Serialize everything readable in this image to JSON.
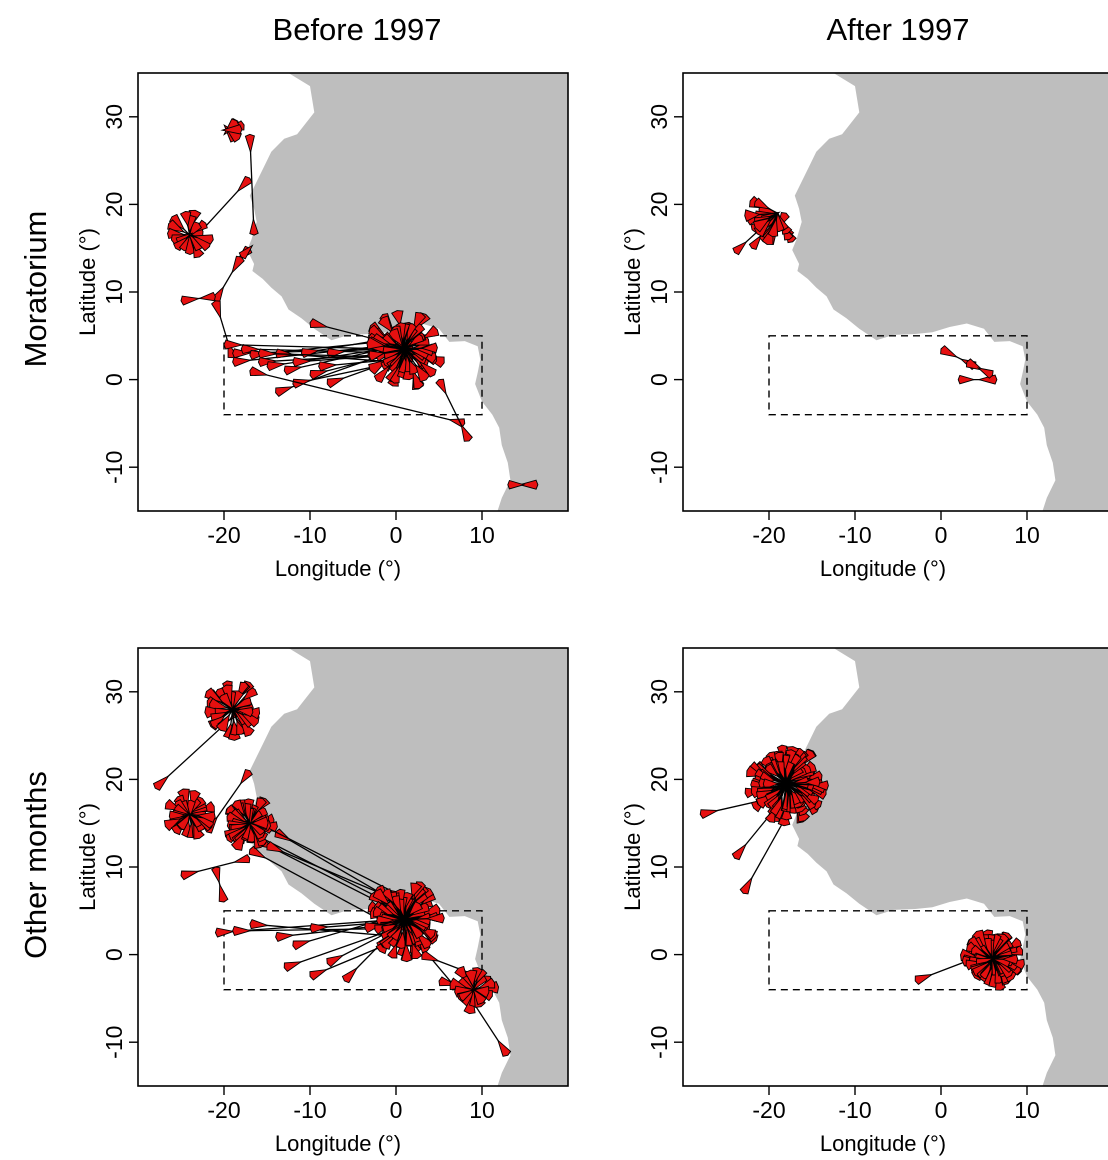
{
  "colors": {
    "land": "#bebebe",
    "arrow_fill": "#e61010",
    "arrow_edge": "#000000",
    "frame": "#000000"
  },
  "columns": [
    "Before 1997",
    "After 1997"
  ],
  "rows": [
    "Moratorium",
    "Other months"
  ],
  "chart_data": [
    {
      "type": "scatter",
      "panel": "Moratorium / Before 1997",
      "xlabel": "Longitude (°)",
      "ylabel": "Latitude (°)",
      "xlim": [
        -30,
        20
      ],
      "ylim": [
        -15,
        35
      ],
      "xticks": [
        "-20",
        "-10",
        "0",
        "10"
      ],
      "yticks": [
        "-10",
        "0",
        "10",
        "20",
        "30"
      ],
      "grid": false,
      "dashed_box": {
        "lon": [
          -20,
          10
        ],
        "lat": [
          -4,
          5
        ]
      },
      "clusters": [
        {
          "lon": 1,
          "lat": 3.5,
          "n": 70,
          "r": 4.5,
          "spread": 360
        },
        {
          "lon": -24,
          "lat": 16.5,
          "n": 18,
          "r": 2.8,
          "spread": 360
        },
        {
          "lon": -19.5,
          "lat": 28.5,
          "n": 6,
          "r": 2.2,
          "spread": 120
        }
      ],
      "tracks": [
        {
          "from": [
            -17,
            28
          ],
          "to": [
            -16.5,
            16.5
          ]
        },
        {
          "from": [
            -17,
            23
          ],
          "to": [
            -24,
            15.5
          ]
        },
        {
          "from": [
            -17,
            15
          ],
          "to": [
            -18,
            14
          ]
        },
        {
          "from": [
            -18,
            14
          ],
          "to": [
            -21,
            9
          ]
        },
        {
          "from": [
            -25,
            9
          ],
          "to": [
            -21,
            9.5
          ]
        },
        {
          "from": [
            -21,
            9
          ],
          "to": [
            -19,
            2.5
          ]
        },
        {
          "from": [
            -19,
            3
          ],
          "to": [
            1,
            3.5
          ]
        },
        {
          "from": [
            -19,
            2
          ],
          "to": [
            0,
            4
          ]
        },
        {
          "from": [
            -18,
            3.5
          ],
          "to": [
            2,
            3
          ]
        },
        {
          "from": [
            -17,
            2.8
          ],
          "to": [
            0,
            4.5
          ]
        },
        {
          "from": [
            -16,
            2
          ],
          "to": [
            1,
            3
          ]
        },
        {
          "from": [
            -15,
            1.5
          ],
          "to": [
            2,
            4
          ]
        },
        {
          "from": [
            -14,
            3
          ],
          "to": [
            0,
            2
          ]
        },
        {
          "from": [
            -13,
            1
          ],
          "to": [
            1,
            4
          ]
        },
        {
          "from": [
            -12,
            2
          ],
          "to": [
            3,
            3
          ]
        },
        {
          "from": [
            -11,
            3
          ],
          "to": [
            1,
            5
          ]
        },
        {
          "from": [
            -10,
            0.5
          ],
          "to": [
            0,
            3
          ]
        },
        {
          "from": [
            -9,
            1.5
          ],
          "to": [
            2,
            2.5
          ]
        },
        {
          "from": [
            -8,
            3
          ],
          "to": [
            1,
            4
          ]
        },
        {
          "from": [
            -14,
            -1.5
          ],
          "to": [
            -1,
            3
          ]
        },
        {
          "from": [
            -12,
            -0.5
          ],
          "to": [
            0,
            2
          ]
        },
        {
          "from": [
            -8,
            -0.5
          ],
          "to": [
            2,
            3
          ]
        },
        {
          "from": [
            -17,
            1
          ],
          "to": [
            8,
            -5
          ]
        },
        {
          "from": [
            -10,
            6.5
          ],
          "to": [
            0,
            4
          ]
        },
        {
          "from": [
            -20,
            4
          ],
          "to": [
            -1,
            3.5
          ]
        },
        {
          "from": [
            -16,
            3
          ],
          "to": [
            1,
            2.5
          ]
        },
        {
          "from": [
            8.5,
            -7
          ],
          "to": [
            5,
            0
          ]
        },
        {
          "from": [
            16.5,
            -12
          ],
          "to": [
            13,
            -12
          ]
        }
      ]
    },
    {
      "type": "scatter",
      "panel": "Moratorium / After 1997",
      "xlabel": "Longitude (°)",
      "ylabel": "Latitude (°)",
      "xlim": [
        -30,
        20
      ],
      "ylim": [
        -15,
        35
      ],
      "xticks": [
        "-20",
        "-10",
        "0",
        "10"
      ],
      "yticks": [
        "-10",
        "0",
        "10",
        "20",
        "30"
      ],
      "grid": false,
      "dashed_box": {
        "lon": [
          -20,
          10
        ],
        "lat": [
          -4,
          5
        ]
      },
      "clusters": [
        {
          "lon": -19,
          "lat": 19,
          "n": 24,
          "r": 3.5,
          "spread": 150,
          "dir": 225
        }
      ],
      "tracks": [
        {
          "from": [
            -19,
            19
          ],
          "to": [
            -24,
            14.5
          ]
        },
        {
          "from": [
            -19,
            19
          ],
          "to": [
            -22,
            15
          ]
        },
        {
          "from": [
            -18,
            19
          ],
          "to": [
            -20,
            15.5
          ]
        },
        {
          "from": [
            0,
            3.5
          ],
          "to": [
            4,
            1.5
          ]
        },
        {
          "from": [
            6.5,
            0
          ],
          "to": [
            2,
            0
          ]
        },
        {
          "from": [
            3,
            2
          ],
          "to": [
            6,
            0.5
          ]
        }
      ]
    },
    {
      "type": "scatter",
      "panel": "Other months / Before 1997",
      "xlabel": "Longitude (°)",
      "ylabel": "Latitude (°)",
      "xlim": [
        -30,
        20
      ],
      "ylim": [
        -15,
        35
      ],
      "xticks": [
        "-20",
        "-10",
        "0",
        "10"
      ],
      "yticks": [
        "-10",
        "0",
        "10",
        "20",
        "30"
      ],
      "grid": false,
      "dashed_box": {
        "lon": [
          -20,
          10
        ],
        "lat": [
          -4,
          5
        ]
      },
      "clusters": [
        {
          "lon": 1,
          "lat": 4,
          "n": 90,
          "r": 4.5,
          "spread": 360
        },
        {
          "lon": -17,
          "lat": 15,
          "n": 45,
          "r": 3.2,
          "spread": 360
        },
        {
          "lon": -19,
          "lat": 28,
          "n": 35,
          "r": 3.5,
          "spread": 360
        },
        {
          "lon": -24,
          "lat": 16,
          "n": 30,
          "r": 3.0,
          "spread": 360
        },
        {
          "lon": 9,
          "lat": -4,
          "n": 20,
          "r": 2.8,
          "spread": 360
        }
      ],
      "tracks": [
        {
          "from": [
            -28,
            19
          ],
          "to": [
            -18,
            28
          ]
        },
        {
          "from": [
            -22,
            14
          ],
          "to": [
            -17,
            21
          ]
        },
        {
          "from": [
            -25,
            9
          ],
          "to": [
            -17,
            11
          ]
        },
        {
          "from": [
            -17,
            14
          ],
          "to": [
            1,
            5
          ]
        },
        {
          "from": [
            -16,
            13
          ],
          "to": [
            2,
            4
          ]
        },
        {
          "from": [
            -17,
            12
          ],
          "to": [
            0,
            3
          ]
        },
        {
          "from": [
            -15,
            12.5
          ],
          "to": [
            3,
            5
          ]
        },
        {
          "from": [
            -14,
            14
          ],
          "to": [
            0,
            6
          ]
        },
        {
          "from": [
            -16,
            15
          ],
          "to": [
            1,
            6.5
          ]
        },
        {
          "from": [
            -21,
            2.5
          ],
          "to": [
            0,
            4
          ]
        },
        {
          "from": [
            -19,
            2.7
          ],
          "to": [
            2,
            3
          ]
        },
        {
          "from": [
            -17,
            3.5
          ],
          "to": [
            1,
            2
          ]
        },
        {
          "from": [
            -14,
            2
          ],
          "to": [
            0,
            3.5
          ]
        },
        {
          "from": [
            -12,
            1
          ],
          "to": [
            2,
            5
          ]
        },
        {
          "from": [
            -10,
            3
          ],
          "to": [
            3,
            4
          ]
        },
        {
          "from": [
            -13,
            -1.5
          ],
          "to": [
            0,
            3
          ]
        },
        {
          "from": [
            -10,
            -2.5
          ],
          "to": [
            1,
            2
          ]
        },
        {
          "from": [
            -8,
            -1
          ],
          "to": [
            2,
            4
          ]
        },
        {
          "from": [
            -6,
            -3
          ],
          "to": [
            0,
            3
          ]
        },
        {
          "from": [
            -20,
            6
          ],
          "to": [
            -21,
            10
          ]
        },
        {
          "from": [
            13,
            -11.5
          ],
          "to": [
            8,
            -4
          ]
        },
        {
          "from": [
            5,
            -3
          ],
          "to": [
            9,
            -4
          ]
        },
        {
          "from": [
            2,
            2
          ],
          "to": [
            8,
            -5
          ]
        },
        {
          "from": [
            3,
            0
          ],
          "to": [
            11,
            -3
          ]
        }
      ]
    },
    {
      "type": "scatter",
      "panel": "Other months / After 1997",
      "xlabel": "Longitude (°)",
      "ylabel": "Latitude (°)",
      "xlim": [
        -30,
        20
      ],
      "ylim": [
        -15,
        35
      ],
      "xticks": [
        "-20",
        "-10",
        "0",
        "10"
      ],
      "yticks": [
        "-10",
        "0",
        "10",
        "20",
        "30"
      ],
      "grid": false,
      "dashed_box": {
        "lon": [
          -20,
          10
        ],
        "lat": [
          -4,
          5
        ]
      },
      "clusters": [
        {
          "lon": -18,
          "lat": 19.5,
          "n": 110,
          "r": 4.5,
          "spread": 360
        },
        {
          "lon": 6,
          "lat": -0.5,
          "n": 75,
          "r": 3.5,
          "spread": 360
        }
      ],
      "tracks": [
        {
          "from": [
            -28,
            16
          ],
          "to": [
            -19,
            18
          ]
        },
        {
          "from": [
            -24,
            11
          ],
          "to": [
            -19,
            17
          ]
        },
        {
          "from": [
            -23,
            7
          ],
          "to": [
            -17,
            17.5
          ]
        },
        {
          "from": [
            -3,
            -3
          ],
          "to": [
            5,
            0
          ]
        }
      ]
    }
  ]
}
